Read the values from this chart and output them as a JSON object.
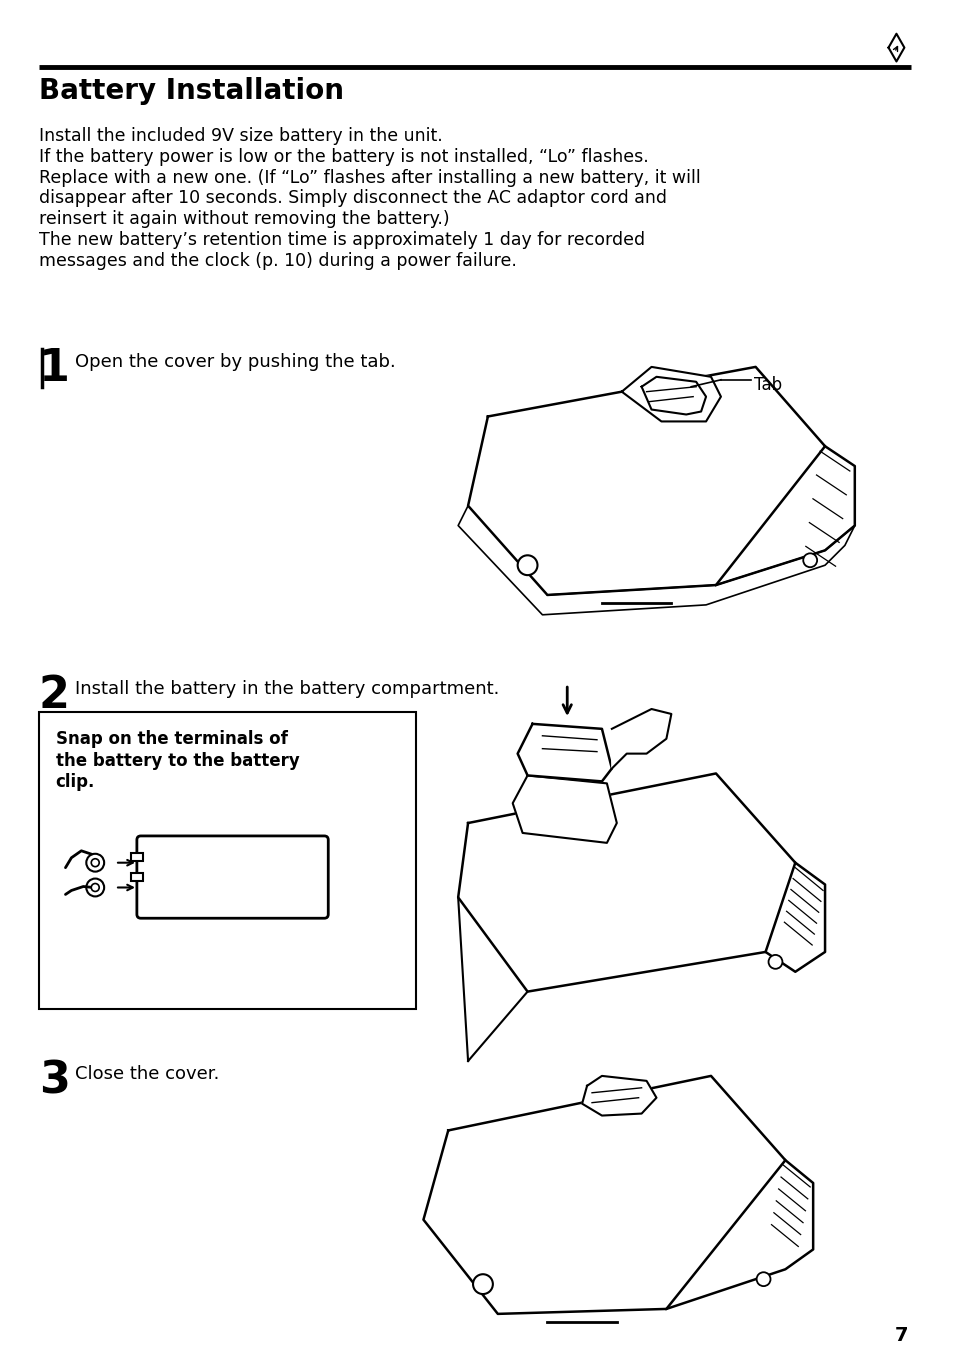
{
  "bg_color": "#ffffff",
  "title": "Battery Installation",
  "page_number": "7",
  "intro_text": [
    "Install the included 9V size battery in the unit.",
    "If the battery power is low or the battery is not installed, “Lo” flashes.",
    "Replace with a new one. (If “Lo” flashes after installing a new battery, it will",
    "disappear after 10 seconds. Simply disconnect the AC adaptor cord and",
    "reinsert it again without removing the battery.)",
    "The new battery’s retention time is approximately 1 day for recorded",
    "messages and the clock (p. 10) during a power failure."
  ],
  "step1_num": "1",
  "step1_text": "Open the cover by pushing the tab.",
  "step1_label": "Tab",
  "step2_num": "2",
  "step2_text": "Install the battery in the battery compartment.",
  "step2_box_lines": [
    "Snap on the terminals of",
    "the battery to the battery",
    "clip."
  ],
  "step3_num": "3",
  "step3_text": "Close the cover.",
  "font_body": 12.5,
  "font_title": 20,
  "font_step_num": 32,
  "font_step_text": 13,
  "text_color": "#000000"
}
